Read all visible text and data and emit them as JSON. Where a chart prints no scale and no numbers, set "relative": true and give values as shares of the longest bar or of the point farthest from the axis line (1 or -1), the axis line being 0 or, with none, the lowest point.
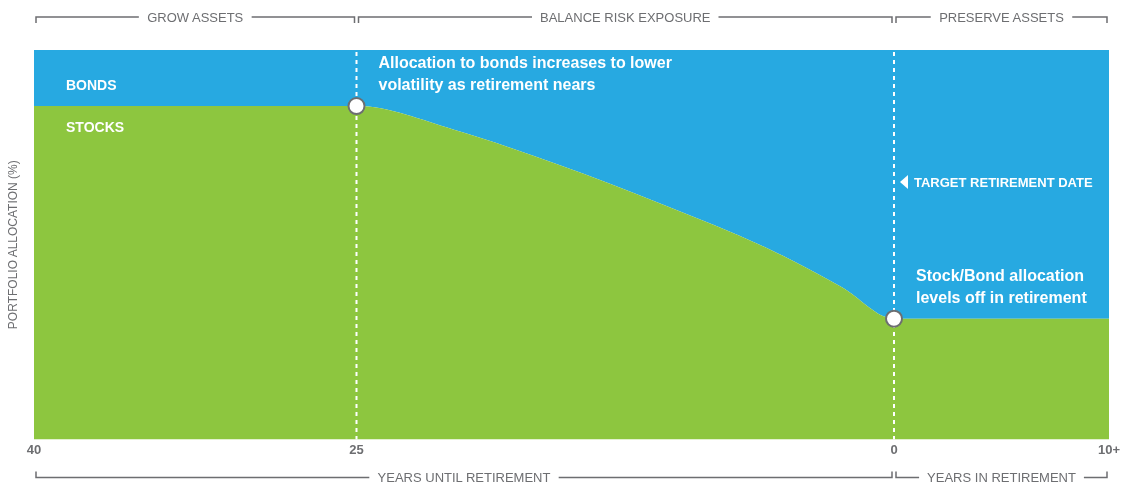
{
  "chart_data": {
    "type": "area",
    "stacked": true,
    "relative": true,
    "legend": false,
    "ylabel": "PORTFOLIO ALLOCATION (%)",
    "xlabel": "YEARS UNTIL RETIREMENT",
    "x": [
      40,
      25,
      20.5,
      15.6,
      10.7,
      5.7,
      2.4,
      0,
      -10
    ],
    "xlim": [
      40,
      -10
    ],
    "xticks": [
      40,
      25,
      0,
      {
        "value": -10,
        "label": "10+"
      }
    ],
    "series": [
      {
        "name": "STOCKS",
        "color": "#8dc63f",
        "values": [
          0.856,
          0.856,
          0.796,
          0.705,
          0.602,
          0.486,
          0.39,
          0.31,
          0.31
        ]
      },
      {
        "name": "BONDS",
        "color": "#27a9e1",
        "values": [
          0.144,
          0.144,
          0.204,
          0.295,
          0.398,
          0.514,
          0.61,
          0.69,
          0.69
        ]
      }
    ],
    "ref_lines": [
      {
        "axis": "x",
        "value": 25,
        "label": null,
        "line_style": "dashed",
        "color": "#ffffff"
      },
      {
        "axis": "x",
        "value": 0,
        "label": "TARGET RETIREMENT DATE",
        "line_style": "dashed",
        "color": "#ffffff"
      }
    ],
    "annotations": [
      "GROW ASSETS",
      "BALANCE RISK EXPOSURE",
      "PRESERVE ASSETS",
      {
        "text": "Allocation to bonds increases to lower volatility as retirement nears",
        "x": 25,
        "y": 0.856
      },
      {
        "text": "Stock/Bond allocation levels off in retirement",
        "x": 0,
        "y": 0.31
      },
      "YEARS IN RETIREMENT"
    ]
  }
}
